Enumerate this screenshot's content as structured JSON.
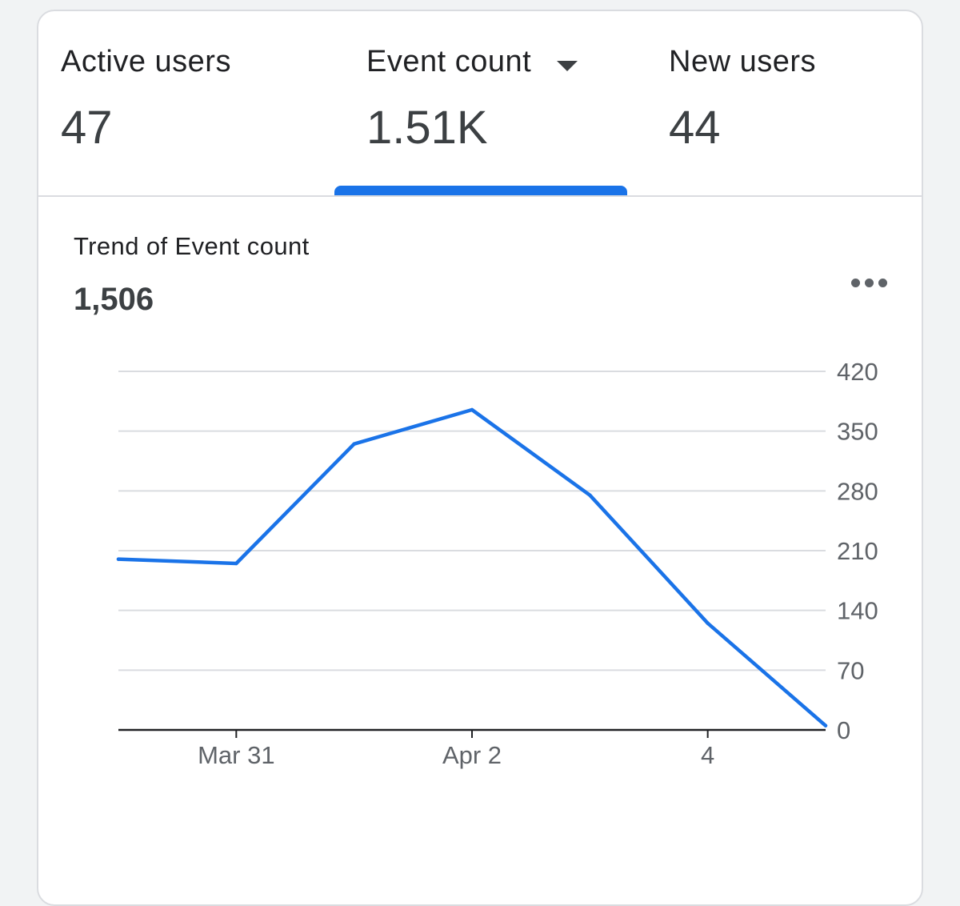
{
  "tabs": [
    {
      "label": "Active users",
      "value": "47"
    },
    {
      "label": "Event count",
      "value": "1.51K"
    },
    {
      "label": "New users",
      "value": "44"
    }
  ],
  "selected_tab": "Event count",
  "chart_header": {
    "title": "Trend of Event count",
    "total": "1,506"
  },
  "colors": {
    "accent": "#1a73e8",
    "grid": "#dadce0",
    "axis": "#202124",
    "tick_text": "#5f6368"
  },
  "icons": {
    "tab_caret": "caret-down-icon",
    "more": "more-horizontal-icon"
  },
  "chart_data": {
    "type": "line",
    "title": "Trend of Event count",
    "x": [
      "Mar 30",
      "Mar 31",
      "Apr 1",
      "Apr 2",
      "Apr 3",
      "Apr 4",
      "Apr 5"
    ],
    "x_tick_labels": [
      {
        "index": 1,
        "label": "Mar 31"
      },
      {
        "index": 3,
        "label": "Apr 2"
      },
      {
        "index": 5,
        "label": "4"
      }
    ],
    "series": [
      {
        "name": "Event count",
        "values": [
          200,
          195,
          335,
          375,
          275,
          125,
          5
        ]
      }
    ],
    "y_ticks": [
      0,
      70,
      140,
      210,
      280,
      350,
      420
    ],
    "ylim": [
      0,
      420
    ],
    "y_axis_side": "right",
    "grid": true,
    "xlabel": "",
    "ylabel": ""
  }
}
